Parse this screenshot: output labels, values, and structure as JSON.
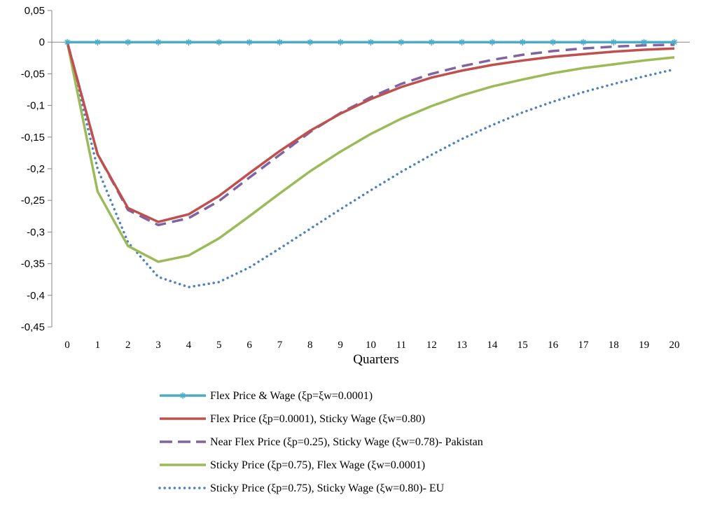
{
  "chart_data": {
    "type": "line",
    "title": "",
    "xlabel": "Quarters",
    "ylabel": "",
    "x": [
      0,
      1,
      2,
      3,
      4,
      5,
      6,
      7,
      8,
      9,
      10,
      11,
      12,
      13,
      14,
      15,
      16,
      17,
      18,
      19,
      20
    ],
    "x_tick_labels": [
      "0",
      "1",
      "2",
      "3",
      "4",
      "5",
      "6",
      "7",
      "8",
      "9",
      "10",
      "11",
      "12",
      "13",
      "14",
      "15",
      "16",
      "17",
      "18",
      "19",
      "20"
    ],
    "ylim": [
      -0.45,
      0.05
    ],
    "y_ticks": [
      0.05,
      0,
      -0.05,
      -0.1,
      -0.15,
      -0.2,
      -0.25,
      -0.3,
      -0.35,
      -0.4,
      -0.45
    ],
    "y_tick_labels": [
      "0,05",
      "0",
      "-0,05",
      "-0,1",
      "-0,15",
      "-0,2",
      "-0,25",
      "-0,3",
      "-0,35",
      "-0,4",
      "-0,45"
    ],
    "grid": false,
    "legend_position": "bottom",
    "series": [
      {
        "name": "Flex Price & Wage (ξp=ξw=0.0001)",
        "color": "#4bacc6",
        "style": "solid-asterisk",
        "values": [
          0,
          0,
          0,
          0,
          0,
          0,
          0,
          0,
          0,
          0,
          0,
          0,
          0,
          0,
          0,
          0,
          0,
          0,
          0,
          0,
          0
        ]
      },
      {
        "name": "Flex Price (ξp=0.0001), Sticky Wage (ξw=0.80)",
        "color": "#c0504d",
        "style": "solid",
        "values": [
          0,
          -0.177,
          -0.262,
          -0.284,
          -0.272,
          -0.243,
          -0.207,
          -0.172,
          -0.14,
          -0.113,
          -0.09,
          -0.071,
          -0.056,
          -0.045,
          -0.036,
          -0.029,
          -0.023,
          -0.019,
          -0.015,
          -0.012,
          -0.01
        ]
      },
      {
        "name": "Near Flex Price (ξp=0.25), Sticky Wage (ξw=0.78)- Pakistan",
        "color": "#8064a2",
        "style": "dashed",
        "values": [
          0,
          -0.177,
          -0.265,
          -0.289,
          -0.278,
          -0.251,
          -0.214,
          -0.178,
          -0.142,
          -0.112,
          -0.087,
          -0.066,
          -0.05,
          -0.038,
          -0.028,
          -0.02,
          -0.014,
          -0.01,
          -0.007,
          -0.005,
          -0.004
        ]
      },
      {
        "name": "Sticky Price (ξp=0.75), Flex Wage (ξw=0.0001)",
        "color": "#9bbb59",
        "style": "solid",
        "values": [
          0,
          -0.236,
          -0.322,
          -0.347,
          -0.337,
          -0.31,
          -0.275,
          -0.239,
          -0.204,
          -0.173,
          -0.145,
          -0.121,
          -0.101,
          -0.084,
          -0.07,
          -0.059,
          -0.049,
          -0.041,
          -0.035,
          -0.029,
          -0.024
        ]
      },
      {
        "name": "Sticky Price (ξp=0.75), Sticky Wage (ξw=0.80)- EU",
        "color": "#4f81bd",
        "style": "dotted",
        "values": [
          0,
          -0.2,
          -0.316,
          -0.371,
          -0.387,
          -0.379,
          -0.356,
          -0.326,
          -0.295,
          -0.264,
          -0.234,
          -0.205,
          -0.178,
          -0.153,
          -0.131,
          -0.111,
          -0.094,
          -0.079,
          -0.066,
          -0.054,
          -0.043
        ]
      }
    ]
  }
}
